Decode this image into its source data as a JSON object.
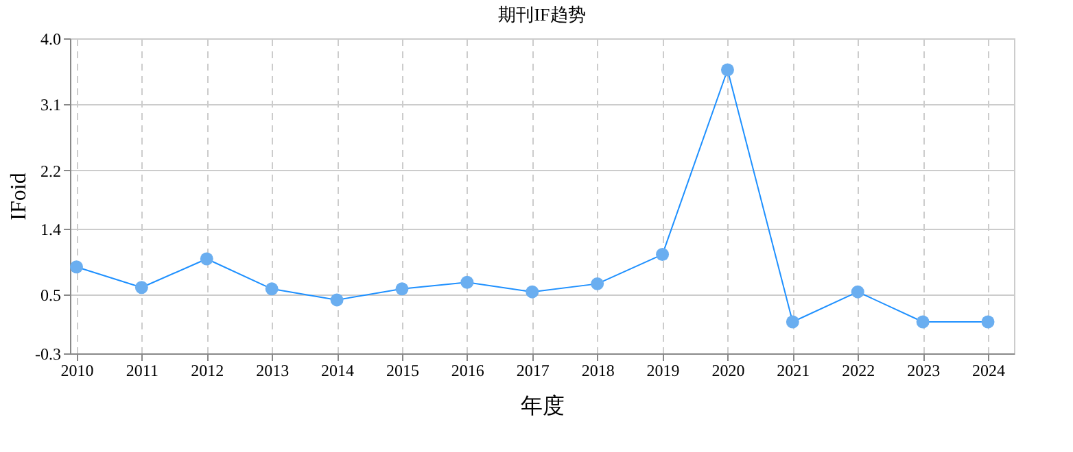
{
  "chart_data": {
    "type": "line",
    "title": "期刊IF趋势",
    "xlabel": "年度",
    "ylabel": "IFoid",
    "categories": [
      "2010",
      "2011",
      "2012",
      "2013",
      "2014",
      "2015",
      "2016",
      "2017",
      "2018",
      "2019",
      "2020",
      "2021",
      "2022",
      "2023",
      "2024"
    ],
    "series": [
      {
        "color": "#1e90ff",
        "values": [
          0.88,
          0.6,
          0.99,
          0.58,
          0.43,
          0.58,
          0.67,
          0.54,
          0.65,
          1.05,
          3.57,
          0.13,
          0.54,
          0.13,
          0.13
        ]
      }
    ],
    "ylim": [
      -0.3,
      4.0
    ],
    "yticks": [
      {
        "value": -0.3,
        "label": "-0.3"
      },
      0.5,
      1.4,
      2.2,
      3.1,
      {
        "value": 4.0,
        "label": "4.0"
      }
    ],
    "grid": true,
    "marker": "circle",
    "line_style": "solid"
  }
}
